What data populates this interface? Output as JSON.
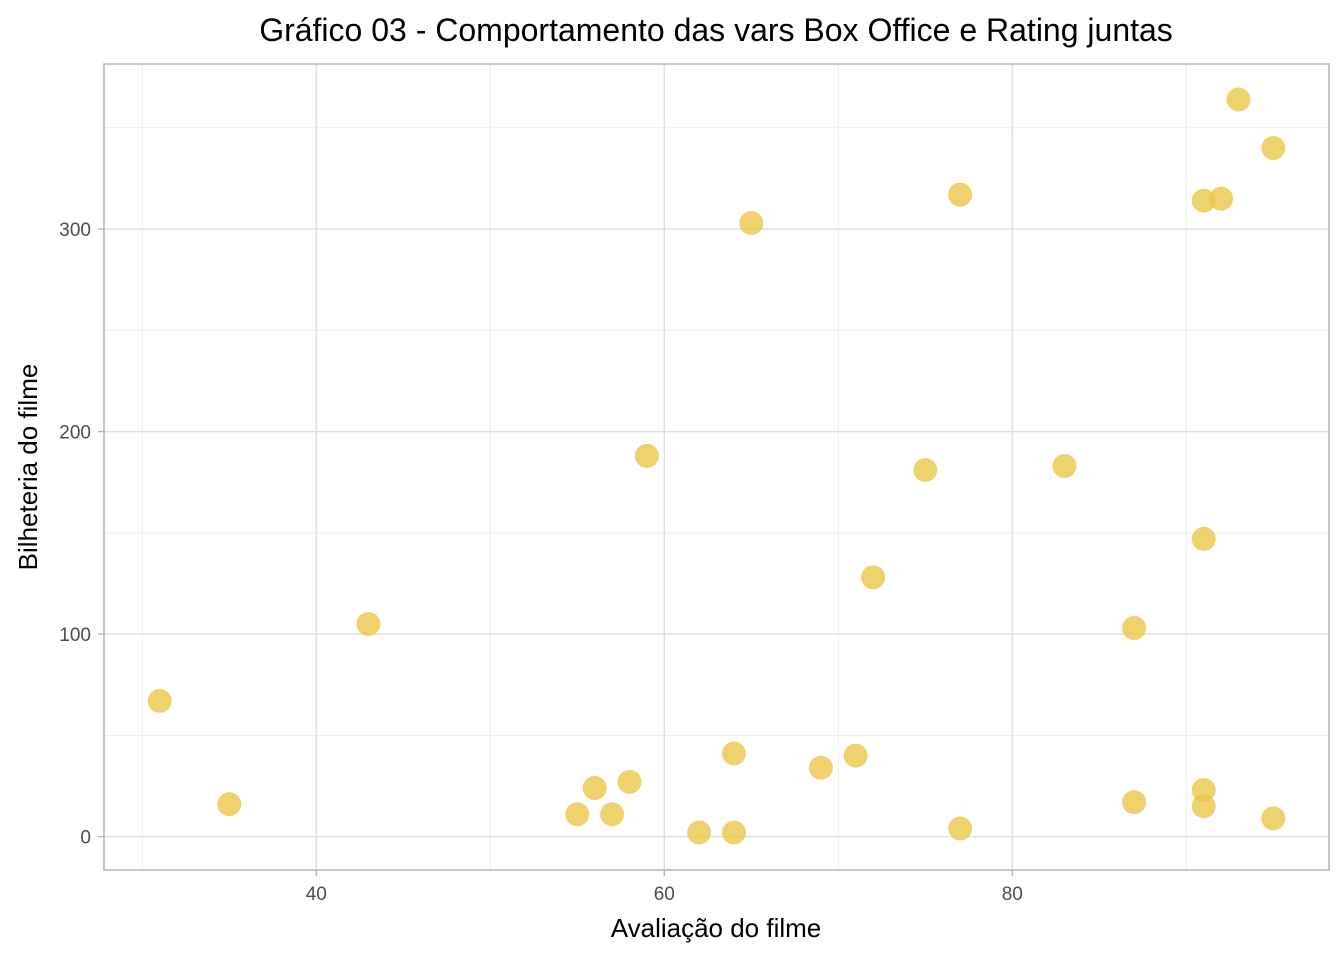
{
  "chart_data": {
    "type": "scatter",
    "title": "Gráfico 03 - Comportamento das vars Box Office e Rating juntas",
    "xlabel": "Avaliação do filme",
    "ylabel": "Bilheteria do filme",
    "xlim": [
      27.8,
      98.2
    ],
    "ylim": [
      -16.5,
      381.5
    ],
    "x_ticks": [
      40,
      60,
      80
    ],
    "x_tick_labels": [
      "40",
      "60",
      "80"
    ],
    "y_ticks": [
      0,
      100,
      200,
      300
    ],
    "y_tick_labels": [
      "0",
      "100",
      "200",
      "300"
    ],
    "grid": true,
    "point_color": "#ebc444",
    "points": [
      {
        "x": 31,
        "y": 67
      },
      {
        "x": 35,
        "y": 16
      },
      {
        "x": 43,
        "y": 105
      },
      {
        "x": 55,
        "y": 11
      },
      {
        "x": 56,
        "y": 24
      },
      {
        "x": 57,
        "y": 11
      },
      {
        "x": 58,
        "y": 27
      },
      {
        "x": 59,
        "y": 188
      },
      {
        "x": 62,
        "y": 2
      },
      {
        "x": 64,
        "y": 2
      },
      {
        "x": 64,
        "y": 41
      },
      {
        "x": 65,
        "y": 303
      },
      {
        "x": 69,
        "y": 34
      },
      {
        "x": 71,
        "y": 40
      },
      {
        "x": 72,
        "y": 128
      },
      {
        "x": 75,
        "y": 181
      },
      {
        "x": 77,
        "y": 4
      },
      {
        "x": 77,
        "y": 317
      },
      {
        "x": 83,
        "y": 183
      },
      {
        "x": 87,
        "y": 17
      },
      {
        "x": 87,
        "y": 103
      },
      {
        "x": 91,
        "y": 15
      },
      {
        "x": 91,
        "y": 23
      },
      {
        "x": 91,
        "y": 147
      },
      {
        "x": 91,
        "y": 314
      },
      {
        "x": 92,
        "y": 315
      },
      {
        "x": 93,
        "y": 364
      },
      {
        "x": 95,
        "y": 9
      },
      {
        "x": 95,
        "y": 340
      }
    ]
  }
}
